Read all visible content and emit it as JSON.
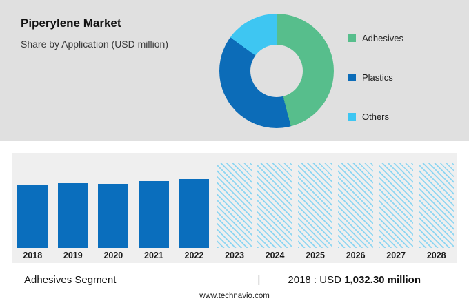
{
  "header": {
    "title": "Piperylene Market",
    "subtitle": "Share by Application (USD million)"
  },
  "chart_data": [
    {
      "type": "pie",
      "donut": true,
      "title": "Share by Application (USD million)",
      "labels": [
        "Adhesives",
        "Plastics",
        "Others"
      ],
      "values_pct": [
        46,
        39,
        15
      ],
      "colors": [
        "#57be8c",
        "#0c6cb8",
        "#3ec6f2"
      ],
      "legend_position": "right"
    },
    {
      "type": "bar",
      "categories": [
        "2018",
        "2019",
        "2020",
        "2021",
        "2022",
        "2023",
        "2024",
        "2025",
        "2026",
        "2027",
        "2028"
      ],
      "series": [
        {
          "name": "Adhesives Segment (USD million)",
          "values": [
            1032.3,
            1065,
            1055,
            1090,
            1130,
            null,
            null,
            null,
            null,
            null,
            null
          ]
        }
      ],
      "forecast_categories": [
        "2023",
        "2024",
        "2025",
        "2026",
        "2027",
        "2028"
      ],
      "bar_color": "#0a6ebd",
      "hatch_color": "#8ed6f2",
      "ylim": [
        0,
        1400
      ],
      "grid": false
    }
  ],
  "footer": {
    "segment_label": "Adhesives Segment",
    "separator": "|",
    "value_prefix": "2018 : USD",
    "value_bold": "1,032.30 million",
    "website": "www.technavio.com"
  }
}
